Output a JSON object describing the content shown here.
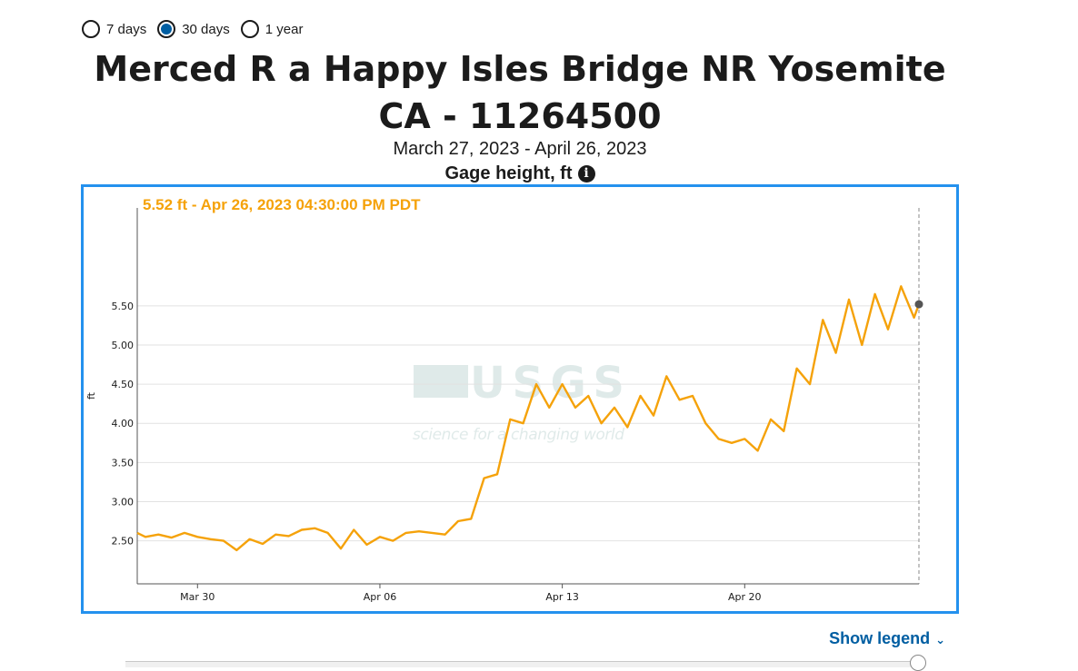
{
  "period_options": [
    {
      "label": "7 days",
      "selected": false
    },
    {
      "label": "30 days",
      "selected": true
    },
    {
      "label": "1 year",
      "selected": false
    }
  ],
  "title": "Merced R a Happy Isles Bridge NR Yosemite CA - 11264500",
  "date_range": "March 27, 2023 - April 26, 2023",
  "parameter": "Gage height, ft",
  "show_legend": "Show legend",
  "colors": {
    "series": "#f5a20a",
    "accent": "#2491ee",
    "link": "#005ea2",
    "point": "#555555"
  },
  "icons": {
    "info": "info-icon",
    "legend_toggle": "chevron-down-icon"
  },
  "chart_data": {
    "type": "line",
    "tooltip": "5.52 ft - Apr 26, 2023 04:30:00 PM PDT",
    "ylabel": "ft",
    "xlim": [
      "2023-03-27T16:30",
      "2023-04-26T16:30"
    ],
    "ylim": [
      1.95,
      6.75
    ],
    "yticks": [
      "5.50",
      "5.00",
      "4.50",
      "4.00",
      "3.50",
      "3.00",
      "2.50"
    ],
    "ytick_values": [
      5.5,
      5.0,
      4.5,
      4.0,
      3.5,
      3.0,
      2.5
    ],
    "xticks": [
      "Mar 30",
      "Apr 06",
      "Apr 13",
      "Apr 20"
    ],
    "xtick_dates": [
      "2023-03-30",
      "2023-04-06",
      "2023-04-13",
      "2023-04-20"
    ],
    "grid": true,
    "series": [
      {
        "x": [
          "2023-03-27T16:30",
          "2023-03-28T00:00",
          "2023-03-28T12:00",
          "2023-03-29T00:00",
          "2023-03-29T12:00",
          "2023-03-30T00:00",
          "2023-03-30T12:00",
          "2023-03-31T00:00",
          "2023-03-31T12:00",
          "2023-04-01T00:00",
          "2023-04-01T12:00",
          "2023-04-02T00:00",
          "2023-04-02T12:00",
          "2023-04-03T00:00",
          "2023-04-03T12:00",
          "2023-04-04T00:00",
          "2023-04-04T12:00",
          "2023-04-05T00:00",
          "2023-04-05T12:00",
          "2023-04-06T00:00",
          "2023-04-06T12:00",
          "2023-04-07T00:00",
          "2023-04-07T12:00",
          "2023-04-08T00:00",
          "2023-04-08T12:00",
          "2023-04-09T00:00",
          "2023-04-09T12:00",
          "2023-04-10T00:00",
          "2023-04-10T12:00",
          "2023-04-11T00:00",
          "2023-04-11T12:00",
          "2023-04-12T00:00",
          "2023-04-12T12:00",
          "2023-04-13T00:00",
          "2023-04-13T12:00",
          "2023-04-14T00:00",
          "2023-04-14T12:00",
          "2023-04-15T00:00",
          "2023-04-15T12:00",
          "2023-04-16T00:00",
          "2023-04-16T12:00",
          "2023-04-17T00:00",
          "2023-04-17T12:00",
          "2023-04-18T00:00",
          "2023-04-18T12:00",
          "2023-04-19T00:00",
          "2023-04-19T12:00",
          "2023-04-20T00:00",
          "2023-04-20T12:00",
          "2023-04-21T00:00",
          "2023-04-21T12:00",
          "2023-04-22T00:00",
          "2023-04-22T12:00",
          "2023-04-23T00:00",
          "2023-04-23T12:00",
          "2023-04-24T00:00",
          "2023-04-24T12:00",
          "2023-04-25T00:00",
          "2023-04-25T12:00",
          "2023-04-26T00:00",
          "2023-04-26T12:00",
          "2023-04-26T16:30"
        ],
        "values": [
          2.6,
          2.55,
          2.58,
          2.54,
          2.6,
          2.55,
          2.52,
          2.5,
          2.38,
          2.52,
          2.46,
          2.58,
          2.56,
          2.64,
          2.66,
          2.6,
          2.4,
          2.64,
          2.45,
          2.55,
          2.5,
          2.6,
          2.62,
          2.6,
          2.58,
          2.75,
          2.78,
          3.3,
          3.35,
          4.05,
          4.0,
          4.5,
          4.2,
          4.5,
          4.2,
          4.35,
          4.0,
          4.2,
          3.95,
          4.35,
          4.1,
          4.6,
          4.3,
          4.35,
          4.0,
          3.8,
          3.75,
          3.8,
          3.65,
          4.05,
          3.9,
          4.7,
          4.5,
          5.32,
          4.9,
          5.58,
          5.0,
          5.65,
          5.2,
          5.75,
          5.35,
          5.52
        ]
      }
    ]
  }
}
